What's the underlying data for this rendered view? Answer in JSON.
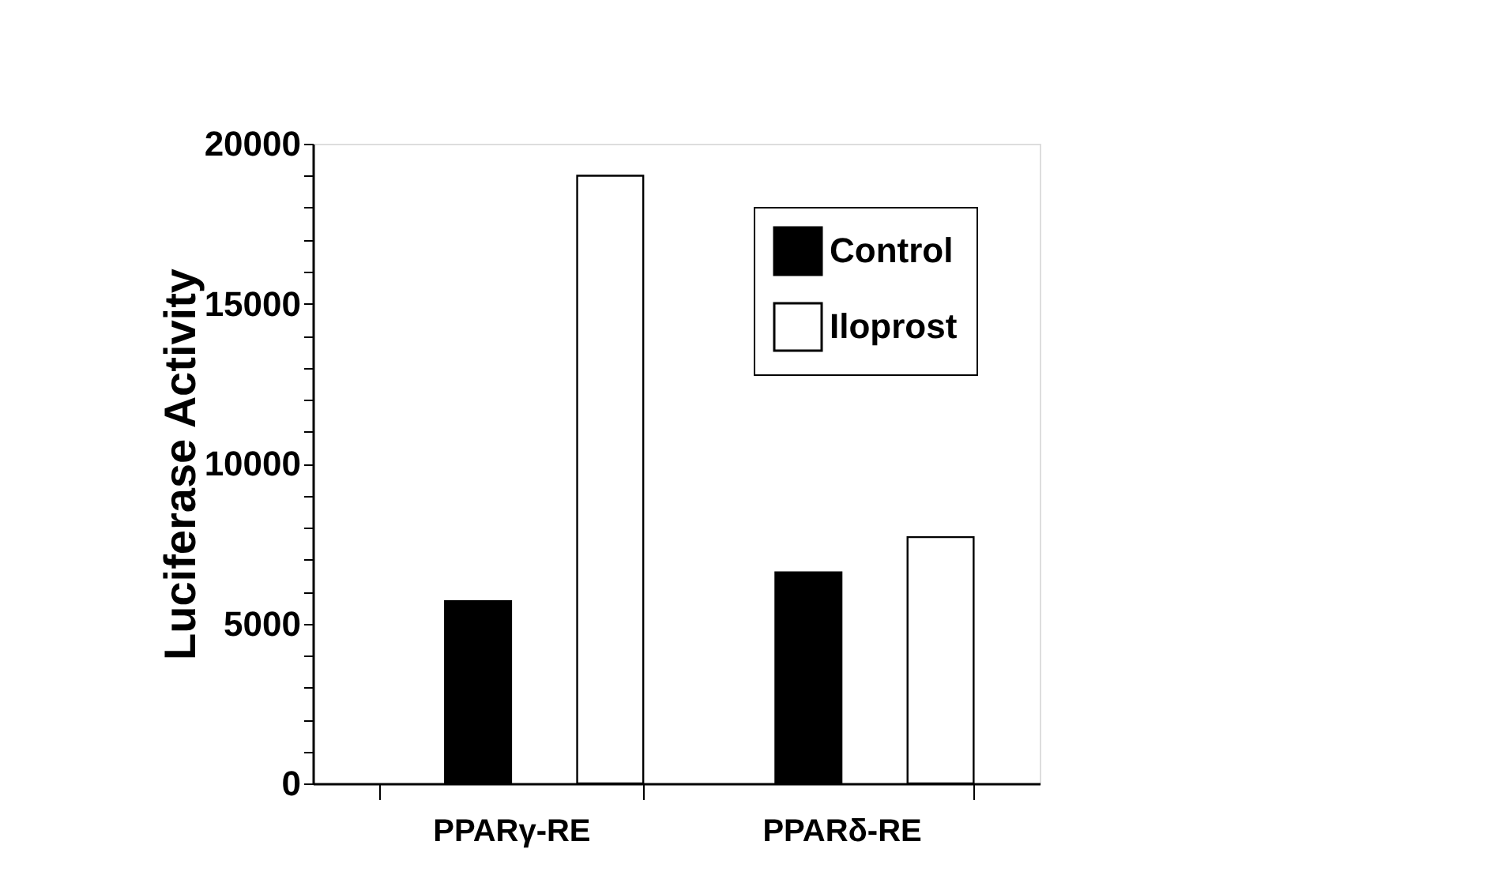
{
  "chart_data": {
    "type": "bar",
    "ylabel": "Luciferase Activity",
    "categories": [
      "PPARγ-RE",
      "PPARδ-RE"
    ],
    "series": [
      {
        "name": "Control",
        "color": "#000000",
        "values": [
          5700,
          6600
        ]
      },
      {
        "name": "Iloprost",
        "color": "#ffffff",
        "values": [
          19000,
          7700
        ]
      }
    ],
    "ylim": [
      0,
      20000
    ],
    "yticks": [
      0,
      {
        "value": 1000,
        "label": null
      },
      {
        "value": 2000,
        "label": null
      },
      {
        "value": 3000,
        "label": null
      },
      {
        "value": 4000,
        "label": null
      },
      5000,
      {
        "value": 6000,
        "label": null
      },
      {
        "value": 7000,
        "label": null
      },
      {
        "value": 8000,
        "label": null
      },
      {
        "value": 9000,
        "label": null
      },
      10000,
      {
        "value": 11000,
        "label": null
      },
      {
        "value": 12000,
        "label": null
      },
      {
        "value": 13000,
        "label": null
      },
      {
        "value": 14000,
        "label": null
      },
      15000,
      {
        "value": 16000,
        "label": null
      },
      {
        "value": 17000,
        "label": null
      },
      {
        "value": 18000,
        "label": null
      },
      {
        "value": 19000,
        "label": null
      },
      20000
    ],
    "grid": false,
    "legend": "top right"
  }
}
